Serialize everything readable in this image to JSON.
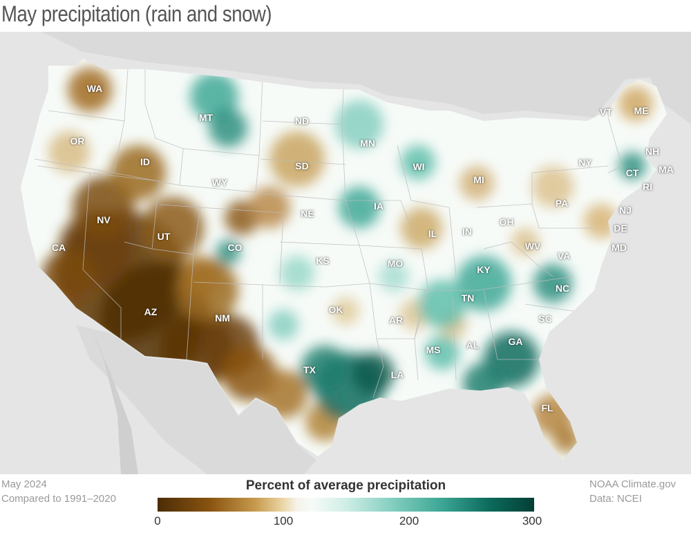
{
  "title": "May precipitation (rain and snow)",
  "footer": {
    "date": "May 2024",
    "baseline": "Compared to 1991–2020",
    "credit": "NOAA Climate.gov",
    "source": "Data: NCEI"
  },
  "legend": {
    "title": "Percent of average precipitation",
    "ticks": [
      "0",
      "100",
      "200",
      "300"
    ],
    "range": [
      0,
      300
    ],
    "colors": {
      "dry": "#4b2c06",
      "neutral": "#f7fbf8",
      "wet": "#053e35"
    }
  },
  "states": [
    "WA",
    "OR",
    "CA",
    "ID",
    "NV",
    "UT",
    "AZ",
    "MT",
    "WY",
    "CO",
    "NM",
    "ND",
    "SD",
    "NE",
    "KS",
    "OK",
    "TX",
    "MN",
    "IA",
    "MO",
    "AR",
    "LA",
    "WI",
    "IL",
    "MS",
    "MI",
    "IN",
    "KY",
    "TN",
    "AL",
    "GA",
    "FL",
    "OH",
    "WV",
    "VA",
    "NC",
    "SC",
    "PA",
    "NY",
    "VT",
    "ME",
    "NH",
    "MA",
    "CT",
    "RI",
    "NJ",
    "DE",
    "MD"
  ]
}
